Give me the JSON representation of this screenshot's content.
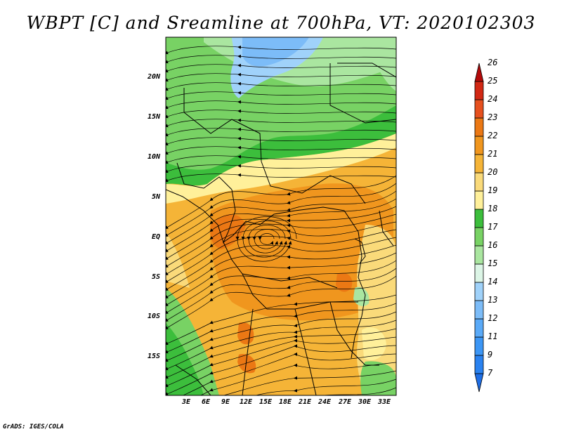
{
  "title": "WBPT [C] and Sreamline at 700hPa, VT: 2020102303",
  "footer": "GrADS: IGES/COLA",
  "map": {
    "lat_labels": [
      "20N",
      "15N",
      "10N",
      "5N",
      "EQ",
      "5S",
      "10S",
      "15S"
    ],
    "lon_labels": [
      "3E",
      "6E",
      "9E",
      "12E",
      "15E",
      "18E",
      "21E",
      "24E",
      "27E",
      "30E",
      "33E"
    ],
    "field": "wet-bulb potential temperature",
    "overlay": "streamlines"
  },
  "colorbar": {
    "labels": [
      "7",
      "9",
      "11",
      "12",
      "13",
      "14",
      "15",
      "16",
      "17",
      "18",
      "19",
      "20",
      "21",
      "22",
      "23",
      "24",
      "25",
      "26"
    ],
    "colors": [
      "#1e6ee6",
      "#2a82f0",
      "#3c96f5",
      "#5aaaf8",
      "#7cbcf8",
      "#a0d2fa",
      "#dcf5e6",
      "#aae6a0",
      "#78d264",
      "#3cbe3c",
      "#fff09a",
      "#fada7a",
      "#f5b437",
      "#f0961e",
      "#eb7814",
      "#e6501e",
      "#d22814",
      "#b40a0a"
    ]
  }
}
